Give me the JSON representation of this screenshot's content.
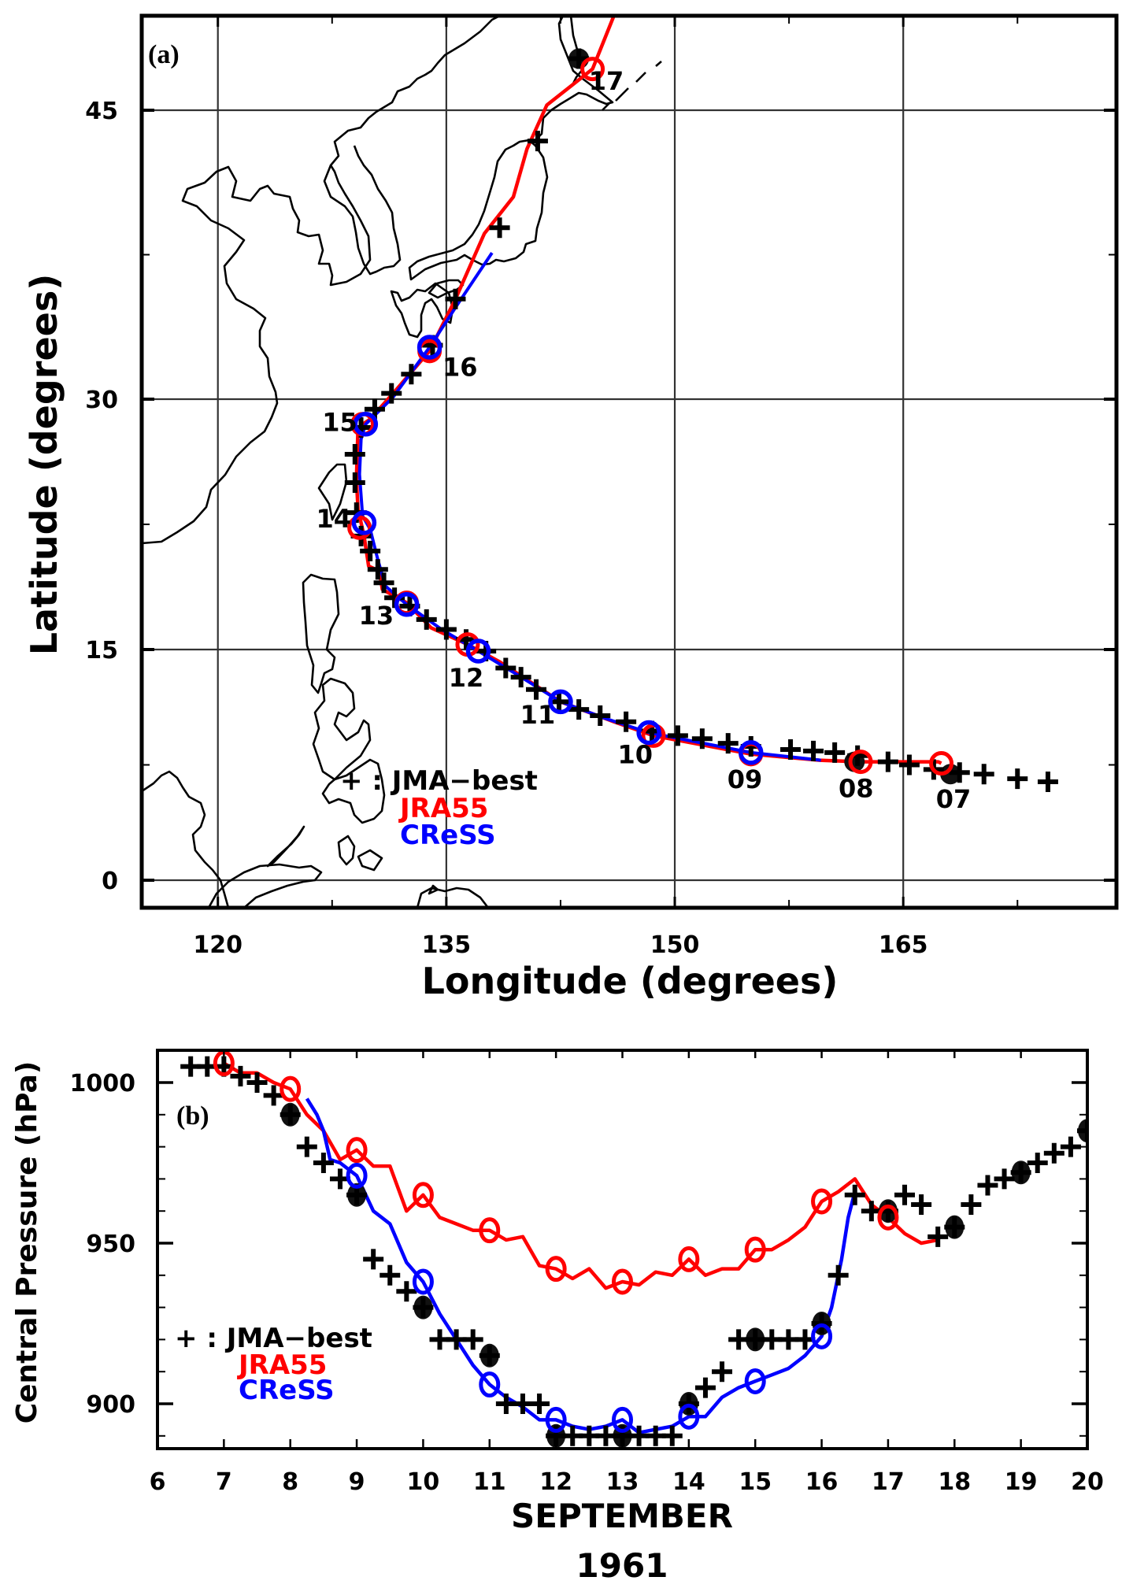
{
  "chart_data": [
    {
      "type": "scatter",
      "panel_label": "(a)",
      "title": "",
      "xlabel": "Longitude (degrees)",
      "ylabel": "Latitude  (degrees)",
      "xlim": [
        115,
        179
      ],
      "ylim": [
        -1.5,
        50.5
      ],
      "xticks": [
        120,
        135,
        150,
        165
      ],
      "yticks": [
        0,
        15,
        30,
        45
      ],
      "xtick_labels": [
        "120",
        "135",
        "150",
        "165"
      ],
      "ytick_labels": [
        "0",
        "15",
        "30",
        "45"
      ],
      "grid": true,
      "legend": {
        "placement": "lower-center",
        "entries": [
          {
            "label": "+ : JMA−best",
            "color": "#000000"
          },
          {
            "label": "JRA55",
            "color": "#ff0000"
          },
          {
            "label": "CReSS",
            "color": "#0000ff"
          }
        ]
      },
      "series": [
        {
          "name": "JMA-best",
          "marker": "plus",
          "color": "#000000",
          "points": [
            [
              174.5,
              6.4
            ],
            [
              172.5,
              6.6
            ],
            [
              170.3,
              6.9
            ],
            [
              168.7,
              7.0
            ],
            [
              167.0,
              7.2
            ],
            [
              165.4,
              7.5
            ],
            [
              164.0,
              7.7
            ],
            [
              162.0,
              8.1
            ],
            [
              160.5,
              8.3
            ],
            [
              159.1,
              8.4
            ],
            [
              157.6,
              8.5
            ],
            [
              155.0,
              8.7
            ],
            [
              153.5,
              8.9
            ],
            [
              151.8,
              9.2
            ],
            [
              150.2,
              9.4
            ],
            [
              148.5,
              9.7
            ],
            [
              146.8,
              10.3
            ],
            [
              145.1,
              10.7
            ],
            [
              143.7,
              11.1
            ],
            [
              142.4,
              11.6
            ],
            [
              140.9,
              12.4
            ],
            [
              139.9,
              13.2
            ],
            [
              138.9,
              13.8
            ],
            [
              137.6,
              14.9
            ],
            [
              136.3,
              15.6
            ],
            [
              135.0,
              16.2
            ],
            [
              133.7,
              16.8
            ],
            [
              132.6,
              17.6
            ],
            [
              131.6,
              18.1
            ],
            [
              130.9,
              19.0
            ],
            [
              130.5,
              19.8
            ],
            [
              130.0,
              20.9
            ],
            [
              129.4,
              21.8
            ],
            [
              129.1,
              23.2
            ],
            [
              129.0,
              25.0
            ],
            [
              129.0,
              26.7
            ],
            [
              129.4,
              28.3
            ],
            [
              130.3,
              29.4
            ],
            [
              131.4,
              30.3
            ],
            [
              132.7,
              31.3
            ],
            [
              134.1,
              32.8
            ],
            [
              135.6,
              35.2
            ],
            [
              138.5,
              38.9
            ],
            [
              141.0,
              43.4
            ],
            [
              143.7,
              48.0
            ]
          ]
        },
        {
          "name": "JRA55",
          "marker": "circle",
          "color": "#ff0000",
          "line": [
            [
              167.5,
              7.6
            ],
            [
              167.3,
              7.7
            ],
            [
              162.2,
              7.7
            ],
            [
              159.5,
              7.8
            ],
            [
              155.0,
              8.2
            ],
            [
              148.6,
              9.4
            ],
            [
              146.0,
              10.3
            ],
            [
              142.5,
              11.6
            ],
            [
              138.5,
              14.2
            ],
            [
              136.4,
              15.3
            ],
            [
              134.0,
              16.3
            ],
            [
              132.4,
              17.8
            ],
            [
              130.8,
              18.6
            ],
            [
              130.6,
              19.7
            ],
            [
              129.9,
              20.0
            ],
            [
              129.6,
              21.8
            ],
            [
              129.2,
              23.4
            ],
            [
              129.1,
              25.2
            ],
            [
              129.2,
              28.3
            ],
            [
              130.0,
              28.8
            ],
            [
              131.5,
              30.3
            ],
            [
              133.9,
              32.5
            ],
            [
              135.6,
              35.2
            ],
            [
              137.5,
              38.6
            ],
            [
              139.4,
              40.5
            ],
            [
              140.3,
              43.0
            ],
            [
              141.6,
              45.3
            ],
            [
              144.6,
              47.4
            ],
            [
              146.0,
              50.5
            ]
          ],
          "points": [
            [
              167.5,
              7.6
            ],
            [
              162.2,
              7.7
            ],
            [
              155.0,
              8.2
            ],
            [
              148.6,
              9.4
            ],
            [
              142.5,
              11.6
            ],
            [
              136.4,
              15.3
            ],
            [
              132.4,
              17.8
            ],
            [
              129.3,
              22.3
            ],
            [
              129.5,
              28.5
            ],
            [
              133.9,
              32.5
            ],
            [
              144.6,
              47.4
            ]
          ]
        },
        {
          "name": "CReSS",
          "marker": "circle",
          "color": "#0000ff",
          "line": [
            [
              159.6,
              7.8
            ],
            [
              155.0,
              8.3
            ],
            [
              148.3,
              9.6
            ],
            [
              145.5,
              10.5
            ],
            [
              142.5,
              11.6
            ],
            [
              139.6,
              13.4
            ],
            [
              137.1,
              14.9
            ],
            [
              134.7,
              16.2
            ],
            [
              132.4,
              17.7
            ],
            [
              131.0,
              18.8
            ],
            [
              130.5,
              20.4
            ],
            [
              130.0,
              22.2
            ],
            [
              129.5,
              23.0
            ],
            [
              129.3,
              25.5
            ],
            [
              129.4,
              27.6
            ],
            [
              129.7,
              28.5
            ],
            [
              131.5,
              30.1
            ],
            [
              133.9,
              32.7
            ],
            [
              135.8,
              35.0
            ],
            [
              138.0,
              37.6
            ]
          ],
          "points": [
            [
              155.0,
              8.3
            ],
            [
              148.3,
              9.6
            ],
            [
              142.5,
              11.6
            ],
            [
              137.1,
              14.9
            ],
            [
              132.4,
              17.7
            ],
            [
              129.6,
              22.6
            ],
            [
              129.7,
              28.5
            ],
            [
              133.9,
              32.7
            ]
          ]
        }
      ],
      "highlighted_jma_points": [
        [
          168.1,
          6.9
        ],
        [
          161.8,
          7.7
        ],
        [
          143.7,
          48.0
        ]
      ],
      "annotations": [
        {
          "text": "07",
          "lon": 168.3,
          "lat": 4.7
        },
        {
          "text": "08",
          "lon": 161.9,
          "lat": 5.4
        },
        {
          "text": "09",
          "lon": 154.6,
          "lat": 6.0
        },
        {
          "text": "10",
          "lon": 147.4,
          "lat": 7.6
        },
        {
          "text": "11",
          "lon": 141.0,
          "lat": 10.2
        },
        {
          "text": "12",
          "lon": 136.3,
          "lat": 12.6
        },
        {
          "text": "13",
          "lon": 130.4,
          "lat": 16.5
        },
        {
          "text": "14",
          "lon": 127.6,
          "lat": 22.3
        },
        {
          "text": "15",
          "lon": 128.0,
          "lat": 28.1
        },
        {
          "text": "16",
          "lon": 135.9,
          "lat": 31.2
        },
        {
          "text": "17",
          "lon": 145.5,
          "lat": 46.2
        }
      ]
    },
    {
      "type": "line",
      "panel_label": "(b)",
      "title": "",
      "xlabel": "SEPTEMBER",
      "xlabel_year": "1961",
      "ylabel": "Central Pressure (hPa)",
      "xlim": [
        6,
        20
      ],
      "ylim": [
        885,
        1010.5
      ],
      "xticks": [
        6,
        7,
        8,
        9,
        10,
        11,
        12,
        13,
        14,
        15,
        16,
        17,
        18,
        19,
        20
      ],
      "xtick_labels": [
        "6",
        "7",
        "8",
        "9",
        "10",
        "11",
        "12",
        "13",
        "14",
        "15",
        "16",
        "17",
        "18",
        "19",
        "20"
      ],
      "yticks": [
        900,
        950,
        1000
      ],
      "ytick_labels": [
        "900",
        "950",
        "1000"
      ],
      "grid": false,
      "legend": {
        "placement": "center-left",
        "entries": [
          {
            "label": "+ : JMA−best",
            "color": "#000000"
          },
          {
            "label": "JRA55",
            "color": "#ff0000"
          },
          {
            "label": "CReSS",
            "color": "#0000ff"
          }
        ]
      },
      "series": [
        {
          "name": "JMA-best",
          "marker": "plus",
          "color": "#000000",
          "x": [
            6.5,
            6.75,
            7.0,
            7.25,
            7.5,
            7.75,
            8.0,
            8.25,
            8.5,
            8.75,
            9.0,
            9.25,
            9.5,
            9.75,
            10.0,
            10.25,
            10.5,
            10.75,
            11.0,
            11.25,
            11.5,
            11.75,
            12.0,
            12.25,
            12.5,
            12.75,
            13.0,
            13.25,
            13.5,
            13.75,
            14.0,
            14.25,
            14.5,
            14.75,
            15.0,
            15.25,
            15.5,
            15.75,
            16.0,
            16.25,
            16.5,
            16.75,
            17.0,
            17.25,
            17.5,
            17.75,
            18.0,
            18.25,
            18.5,
            18.75,
            19.0,
            19.25,
            19.5,
            19.75,
            20.0
          ],
          "y": [
            1005,
            1005,
            1005,
            1002,
            1000,
            996,
            990,
            980,
            975,
            970,
            965,
            945,
            940,
            935,
            930,
            920,
            920,
            920,
            915,
            900,
            900,
            900,
            890,
            890,
            890,
            890,
            890,
            890,
            890,
            890,
            900,
            905,
            910,
            920,
            920,
            920,
            920,
            920,
            925,
            940,
            965,
            960,
            960,
            965,
            962,
            952,
            955,
            962,
            968,
            970,
            972,
            975,
            978,
            980,
            985
          ],
          "highlighted": [
            [
              8.0,
              990
            ],
            [
              9.0,
              965
            ],
            [
              10.0,
              930
            ],
            [
              11.0,
              915
            ],
            [
              12.0,
              890
            ],
            [
              13.0,
              890
            ],
            [
              14.0,
              900
            ],
            [
              15.0,
              920
            ],
            [
              16.0,
              925
            ],
            [
              17.0,
              960
            ],
            [
              18.0,
              955
            ],
            [
              19.0,
              972
            ],
            [
              20.0,
              985
            ]
          ]
        },
        {
          "name": "JRA55",
          "marker": "circle",
          "color": "#ff0000",
          "x": [
            7.0,
            7.25,
            7.5,
            7.75,
            8.0,
            8.25,
            8.5,
            8.75,
            9.0,
            9.25,
            9.5,
            9.75,
            10.0,
            10.25,
            10.5,
            10.75,
            11.0,
            11.25,
            11.5,
            11.75,
            12.0,
            12.25,
            12.5,
            12.75,
            13.0,
            13.25,
            13.5,
            13.75,
            14.0,
            14.25,
            14.5,
            14.75,
            15.0,
            15.25,
            15.5,
            15.75,
            16.0,
            16.25,
            16.5,
            16.75,
            17.0,
            17.25,
            17.5,
            17.75
          ],
          "y": [
            1006,
            1003,
            1003,
            1000,
            998,
            990,
            985,
            976,
            979,
            974,
            974,
            960,
            965,
            958,
            956,
            954,
            954,
            951,
            952,
            943,
            942,
            939,
            942,
            936,
            938,
            937,
            941,
            940,
            945,
            940,
            942,
            942,
            948,
            948,
            951,
            955,
            963,
            966,
            970,
            962,
            958,
            953,
            950,
            951
          ],
          "markers_x": [
            7,
            8,
            9,
            10,
            11,
            12,
            13,
            14,
            15,
            16,
            17
          ],
          "markers_y": [
            1006,
            998,
            979,
            965,
            954,
            942,
            938,
            945,
            948,
            963,
            958
          ]
        },
        {
          "name": "CReSS",
          "marker": "circle",
          "color": "#0000ff",
          "x": [
            8.25,
            8.4,
            8.5,
            8.6,
            8.75,
            9.0,
            9.25,
            9.5,
            9.75,
            10.0,
            10.25,
            10.5,
            10.75,
            11.0,
            11.25,
            11.5,
            11.75,
            12.0,
            12.25,
            12.5,
            12.75,
            13.0,
            13.25,
            13.5,
            13.75,
            14.0,
            14.25,
            14.5,
            14.75,
            15.0,
            15.25,
            15.5,
            15.75,
            16.0,
            16.15,
            16.3,
            16.4,
            16.5
          ],
          "y": [
            995,
            990,
            985,
            976,
            975,
            971,
            960,
            956,
            944,
            938,
            928,
            920,
            912,
            906,
            902,
            899,
            895,
            895,
            893,
            892,
            893,
            895,
            891,
            892,
            893,
            896,
            896,
            902,
            905,
            907,
            909,
            911,
            915,
            921,
            930,
            945,
            958,
            966
          ],
          "markers_x": [
            9,
            10,
            11,
            12,
            13,
            14,
            15,
            16
          ],
          "markers_y": [
            971,
            938,
            906,
            895,
            895,
            896,
            907,
            921
          ]
        }
      ]
    }
  ],
  "legend_a": {
    "jma": "+ : JMA−best",
    "jra": "JRA55",
    "cress": "CReSS"
  },
  "legend_b": {
    "jma": "+ : JMA−best",
    "jra": "JRA55",
    "cress": "CReSS"
  },
  "colors": {
    "jma": "#000000",
    "jra": "#ff0000",
    "cress": "#0000ff"
  }
}
